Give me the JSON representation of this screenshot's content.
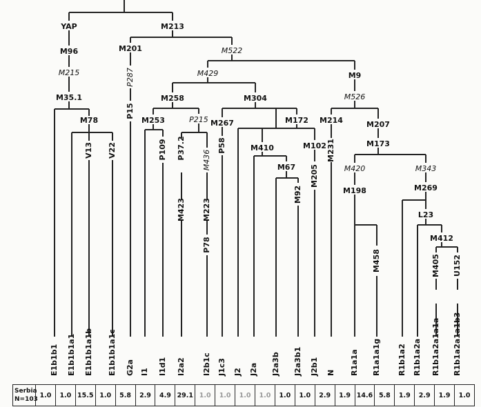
{
  "tree": {
    "nodes": [
      {
        "id": "yap",
        "label": "YAP",
        "italic": false
      },
      {
        "id": "m96",
        "label": "M96",
        "italic": false
      },
      {
        "id": "m215a",
        "label": "M215",
        "italic": true
      },
      {
        "id": "m35",
        "label": "M35.1",
        "italic": false
      },
      {
        "id": "m78",
        "label": "M78",
        "italic": false
      },
      {
        "id": "v13",
        "label": "V13",
        "italic": false
      },
      {
        "id": "v22",
        "label": "V22",
        "italic": false
      },
      {
        "id": "m213",
        "label": "M213",
        "italic": false
      },
      {
        "id": "m201",
        "label": "M201",
        "italic": false
      },
      {
        "id": "p287",
        "label": "P287",
        "italic": true
      },
      {
        "id": "p15",
        "label": "P15",
        "italic": false
      },
      {
        "id": "m522",
        "label": "M522",
        "italic": true
      },
      {
        "id": "m429",
        "label": "M429",
        "italic": true
      },
      {
        "id": "m258",
        "label": "M258",
        "italic": false
      },
      {
        "id": "m253",
        "label": "M253",
        "italic": false
      },
      {
        "id": "p109",
        "label": "P109",
        "italic": false
      },
      {
        "id": "p215",
        "label": "P215",
        "italic": true
      },
      {
        "id": "p37",
        "label": "P37.2",
        "italic": false
      },
      {
        "id": "m423",
        "label": "M423",
        "italic": false
      },
      {
        "id": "m436",
        "label": "M436",
        "italic": true
      },
      {
        "id": "m223",
        "label": "M223",
        "italic": false
      },
      {
        "id": "p78",
        "label": "P78",
        "italic": false
      },
      {
        "id": "m304",
        "label": "M304",
        "italic": false
      },
      {
        "id": "m267",
        "label": "M267",
        "italic": false
      },
      {
        "id": "p58",
        "label": "P58",
        "italic": false
      },
      {
        "id": "m172",
        "label": "M172",
        "italic": false
      },
      {
        "id": "m410",
        "label": "M410",
        "italic": false
      },
      {
        "id": "m67",
        "label": "M67",
        "italic": false
      },
      {
        "id": "m92",
        "label": "M92",
        "italic": false
      },
      {
        "id": "m102",
        "label": "M102",
        "italic": false
      },
      {
        "id": "m205",
        "label": "M205",
        "italic": false
      },
      {
        "id": "m9",
        "label": "M9",
        "italic": false
      },
      {
        "id": "m526",
        "label": "M526",
        "italic": true
      },
      {
        "id": "m214",
        "label": "M214",
        "italic": false
      },
      {
        "id": "m231",
        "label": "M231",
        "italic": false
      },
      {
        "id": "m207",
        "label": "M207",
        "italic": false
      },
      {
        "id": "m173",
        "label": "M173",
        "italic": false
      },
      {
        "id": "m420",
        "label": "M420",
        "italic": true
      },
      {
        "id": "m198",
        "label": "M198",
        "italic": false
      },
      {
        "id": "m458",
        "label": "M458",
        "italic": false
      },
      {
        "id": "m343",
        "label": "M343",
        "italic": true
      },
      {
        "id": "m269",
        "label": "M269",
        "italic": false
      },
      {
        "id": "l23",
        "label": "L23",
        "italic": false
      },
      {
        "id": "m412",
        "label": "M412",
        "italic": false
      },
      {
        "id": "m405",
        "label": "M405",
        "italic": false
      },
      {
        "id": "u152",
        "label": "U152",
        "italic": false
      }
    ],
    "leaves": [
      "E1b1b1",
      "E1b1b1a1",
      "E1b1b1a1b",
      "E1b1b1a1c",
      "G2a",
      "I1",
      "I1d1",
      "I2a2",
      "I2b1c",
      "J1c3",
      "J2",
      "J2a",
      "J2a3b",
      "J2a3b1",
      "J2b1",
      "N",
      "R1a1a",
      "R1a1a1g",
      "R1b1a2",
      "R1b1a2a",
      "R1b1a2a1a1a",
      "R1b1a2a1a1b3"
    ]
  },
  "table": {
    "population": "Serbia",
    "sample_size": "N=103",
    "frequencies": [
      {
        "value": "1.0",
        "muted": false
      },
      {
        "value": "1.0",
        "muted": false
      },
      {
        "value": "15.5",
        "muted": false
      },
      {
        "value": "1.0",
        "muted": false
      },
      {
        "value": "5.8",
        "muted": false
      },
      {
        "value": "2.9",
        "muted": false
      },
      {
        "value": "4.9",
        "muted": false
      },
      {
        "value": "29.1",
        "muted": false
      },
      {
        "value": "1.0",
        "muted": true
      },
      {
        "value": "1.0",
        "muted": true
      },
      {
        "value": "1.0",
        "muted": true
      },
      {
        "value": "1.0",
        "muted": true
      },
      {
        "value": "1.0",
        "muted": false
      },
      {
        "value": "1.0",
        "muted": false
      },
      {
        "value": "2.9",
        "muted": false
      },
      {
        "value": "1.9",
        "muted": false
      },
      {
        "value": "14.6",
        "muted": false
      },
      {
        "value": "5.8",
        "muted": false
      },
      {
        "value": "1.9",
        "muted": false
      },
      {
        "value": "2.9",
        "muted": false
      },
      {
        "value": "1.9",
        "muted": false
      },
      {
        "value": "1.0",
        "muted": false
      }
    ]
  },
  "colors": {
    "line": "#222222",
    "text": "#111111",
    "muted": "#999999",
    "background": "#fbfbf9"
  }
}
